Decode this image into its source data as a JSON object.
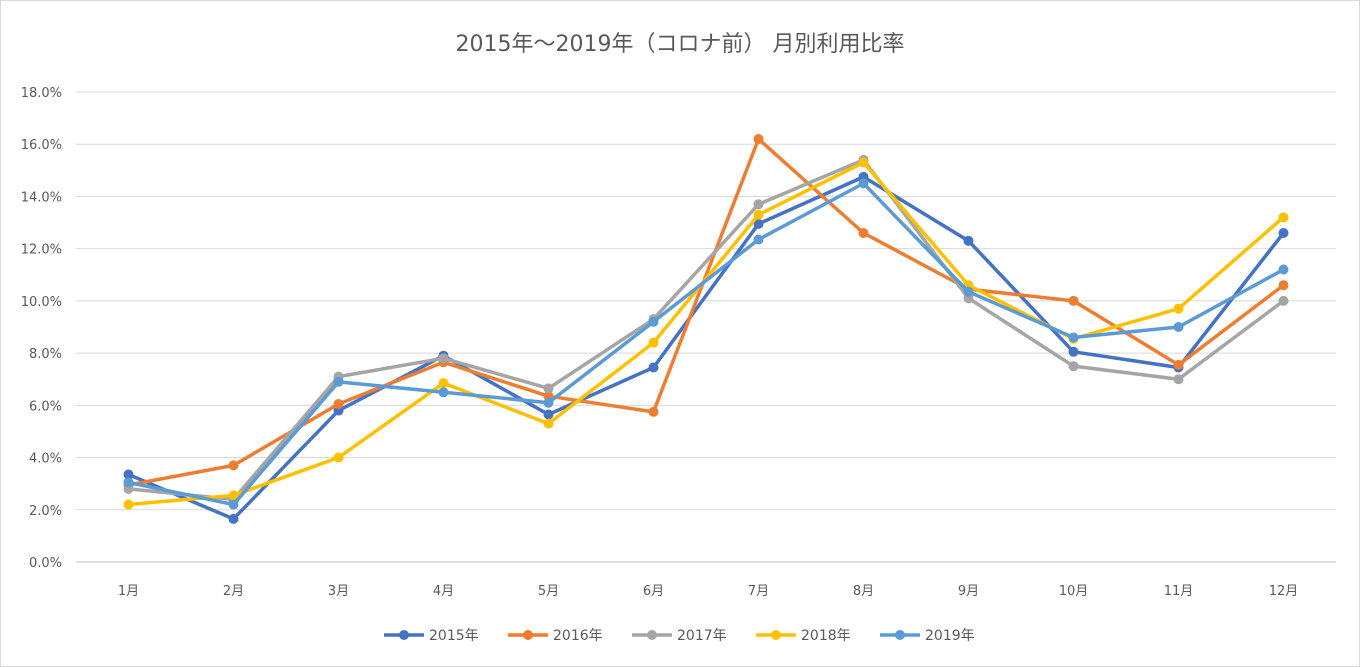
{
  "chart_data": {
    "type": "line",
    "title": "2015年～2019年（コロナ前） 月別利用比率",
    "xlabel": "",
    "ylabel": "",
    "categories": [
      "1月",
      "2月",
      "3月",
      "4月",
      "5月",
      "6月",
      "7月",
      "8月",
      "9月",
      "10月",
      "11月",
      "12月"
    ],
    "ylim": [
      0,
      18
    ],
    "yticks": [
      "0.0%",
      "2.0%",
      "4.0%",
      "6.0%",
      "8.0%",
      "10.0%",
      "12.0%",
      "14.0%",
      "16.0%",
      "18.0%"
    ],
    "grid": true,
    "legend_position": "bottom",
    "series": [
      {
        "name": "2015年",
        "color": "#4472c4",
        "values": [
          3.35,
          1.65,
          5.8,
          7.9,
          5.65,
          7.45,
          12.95,
          14.75,
          12.3,
          8.05,
          7.45,
          12.6
        ]
      },
      {
        "name": "2016年",
        "color": "#ed7d31",
        "values": [
          2.95,
          3.7,
          6.05,
          7.65,
          6.35,
          5.75,
          16.2,
          12.6,
          10.45,
          10.0,
          7.55,
          10.6
        ]
      },
      {
        "name": "2017年",
        "color": "#a5a5a5",
        "values": [
          2.8,
          2.4,
          7.1,
          7.8,
          6.65,
          9.3,
          13.7,
          15.4,
          10.1,
          7.5,
          7.0,
          10.0
        ]
      },
      {
        "name": "2018年",
        "color": "#ffc000",
        "values": [
          2.2,
          2.55,
          4.0,
          6.85,
          5.3,
          8.4,
          13.3,
          15.3,
          10.6,
          8.55,
          9.7,
          13.2
        ]
      },
      {
        "name": "2019年",
        "color": "#5b9bd5",
        "values": [
          3.05,
          2.2,
          6.9,
          6.5,
          6.1,
          9.2,
          12.35,
          14.5,
          10.35,
          8.6,
          9.0,
          11.2
        ]
      }
    ]
  }
}
